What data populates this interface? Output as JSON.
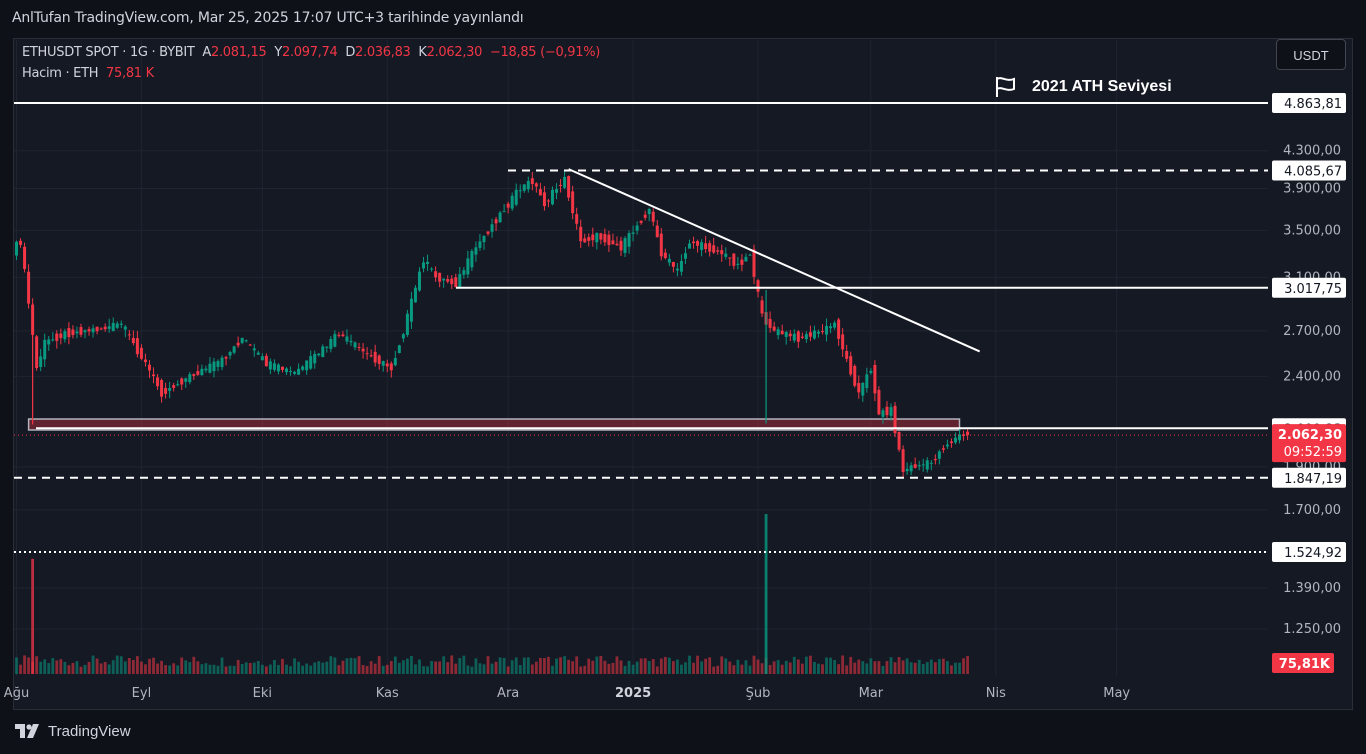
{
  "header": {
    "published": "AnlTufan TradingView.com, Mar 25, 2025 17:07 UTC+3 tarihinde yayınlandı"
  },
  "legend": {
    "symbol": "ETHUSDT SPOT · 1G · BYBIT",
    "open_label": "A",
    "open": "2.081,15",
    "high_label": "Y",
    "high": "2.097,74",
    "low_label": "D",
    "low": "2.036,83",
    "close_label": "K",
    "close": "2.062,30",
    "change": "−18,85 (−0,91%)",
    "volume_label": "Hacim · ETH",
    "volume": "75,81 K"
  },
  "currency_button": "USDT",
  "annotation": {
    "text": "2021 ATH Seviyesi",
    "icon": "flag-icon"
  },
  "price_axis": {
    "ticks": [
      "4.300,00",
      "3.900,00",
      "3.500,00",
      "3.100,00",
      "2.700,00",
      "2.400,00",
      "1.900,00",
      "1.700,00",
      "1.390,00",
      "1.250,00"
    ],
    "tags": [
      "4.863,81",
      "4.085,67",
      "3.017,75",
      "2.099,23",
      "1.847,19",
      "1.524,92"
    ],
    "current_price": "2.062,30",
    "countdown": "09:52:59",
    "volume_tag": "75,81K"
  },
  "time_axis": {
    "labels": [
      "Ağu",
      "Eyl",
      "Eki",
      "Kas",
      "Ara",
      "2025",
      "Şub",
      "Mar",
      "Nis",
      "May"
    ]
  },
  "chart_data": {
    "type": "candlestick",
    "symbol": "ETHUSDT",
    "interval": "1G",
    "y_scale": "log",
    "price_range": [
      1190,
      5200
    ],
    "horizontal_levels": [
      {
        "price": 4863.81,
        "style": "solid",
        "label": "2021 ATH Seviyesi"
      },
      {
        "price": 4085.67,
        "style": "dashed"
      },
      {
        "price": 3017.75,
        "style": "solid"
      },
      {
        "price": 2099.23,
        "style": "solid"
      },
      {
        "price": 1847.19,
        "style": "dashed"
      },
      {
        "price": 1524.92,
        "style": "dotted"
      }
    ],
    "trendline": {
      "from": {
        "date": "2024-12-16",
        "price": 4100
      },
      "to": {
        "date": "2025-03-28",
        "price": 2560
      }
    },
    "support_zone": {
      "from_date": "2024-08-05",
      "to_date": "2025-03-22",
      "low": 2090,
      "high": 2150
    },
    "price_path": [
      {
        "date": "2024-08-01",
        "price": 3330
      },
      {
        "date": "2024-08-03",
        "price": 3400
      },
      {
        "date": "2024-08-05",
        "price": 2900
      },
      {
        "date": "2024-08-07",
        "price": 2450
      },
      {
        "date": "2024-08-09",
        "price": 2620
      },
      {
        "date": "2024-08-14",
        "price": 2680
      },
      {
        "date": "2024-08-24",
        "price": 2720
      },
      {
        "date": "2024-08-28",
        "price": 2750
      },
      {
        "date": "2024-09-03",
        "price": 2480
      },
      {
        "date": "2024-09-07",
        "price": 2300
      },
      {
        "date": "2024-09-14",
        "price": 2400
      },
      {
        "date": "2024-09-22",
        "price": 2500
      },
      {
        "date": "2024-09-27",
        "price": 2650
      },
      {
        "date": "2024-10-03",
        "price": 2480
      },
      {
        "date": "2024-10-10",
        "price": 2420
      },
      {
        "date": "2024-10-16",
        "price": 2550
      },
      {
        "date": "2024-10-21",
        "price": 2680
      },
      {
        "date": "2024-10-28",
        "price": 2540
      },
      {
        "date": "2024-11-03",
        "price": 2450
      },
      {
        "date": "2024-11-06",
        "price": 2700
      },
      {
        "date": "2024-11-11",
        "price": 3250
      },
      {
        "date": "2024-11-14",
        "price": 3100
      },
      {
        "date": "2024-11-19",
        "price": 3050
      },
      {
        "date": "2024-11-24",
        "price": 3350
      },
      {
        "date": "2024-11-29",
        "price": 3600
      },
      {
        "date": "2024-12-05",
        "price": 3900
      },
      {
        "date": "2024-12-08",
        "price": 3980
      },
      {
        "date": "2024-12-11",
        "price": 3750
      },
      {
        "date": "2024-12-15",
        "price": 3950
      },
      {
        "date": "2024-12-16",
        "price": 3990
      },
      {
        "date": "2024-12-20",
        "price": 3400
      },
      {
        "date": "2024-12-24",
        "price": 3450
      },
      {
        "date": "2024-12-30",
        "price": 3350
      },
      {
        "date": "2025-01-06",
        "price": 3700
      },
      {
        "date": "2025-01-09",
        "price": 3300
      },
      {
        "date": "2025-01-13",
        "price": 3150
      },
      {
        "date": "2025-01-16",
        "price": 3400
      },
      {
        "date": "2025-01-20",
        "price": 3350
      },
      {
        "date": "2025-01-24",
        "price": 3300
      },
      {
        "date": "2025-01-28",
        "price": 3200
      },
      {
        "date": "2025-01-31",
        "price": 3300
      },
      {
        "date": "2025-02-03",
        "price": 2800
      },
      {
        "date": "2025-02-06",
        "price": 2700
      },
      {
        "date": "2025-02-12",
        "price": 2650
      },
      {
        "date": "2025-02-18",
        "price": 2700
      },
      {
        "date": "2025-02-21",
        "price": 2750
      },
      {
        "date": "2025-02-24",
        "price": 2500
      },
      {
        "date": "2025-02-27",
        "price": 2300
      },
      {
        "date": "2025-03-02",
        "price": 2450
      },
      {
        "date": "2025-03-04",
        "price": 2180
      },
      {
        "date": "2025-03-07",
        "price": 2200
      },
      {
        "date": "2025-03-10",
        "price": 1880
      },
      {
        "date": "2025-03-12",
        "price": 1900
      },
      {
        "date": "2025-03-17",
        "price": 1920
      },
      {
        "date": "2025-03-20",
        "price": 2000
      },
      {
        "date": "2025-03-24",
        "price": 2060
      },
      {
        "date": "2025-03-25",
        "price": 2062.3
      }
    ],
    "volume_spikes": [
      {
        "date": "2024-08-05",
        "value": 180
      },
      {
        "date": "2025-02-03",
        "value": 250
      }
    ],
    "volume_label": "Hacim · ETH",
    "colors": {
      "up": "#089981",
      "down": "#f23645",
      "bg": "#151924",
      "grid": "#1f2431",
      "level": "#ffffff",
      "zone": "#f23645"
    }
  }
}
